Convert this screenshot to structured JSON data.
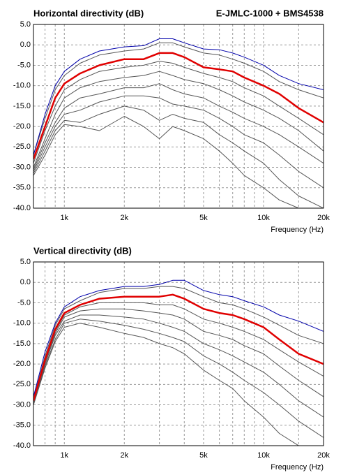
{
  "chart_data": [
    {
      "type": "line",
      "title": "Horizontal directivity (dB)",
      "annotation": "E-JMLC-1000 + BMS4538",
      "x_label": "Frequency (Hz)",
      "xscale": "log",
      "grid": true,
      "xlim": [
        700,
        20000
      ],
      "ylim": [
        -40,
        5
      ],
      "xticks": [
        {
          "value": 1000,
          "label": "1k"
        },
        {
          "value": 2000,
          "label": "2k"
        },
        {
          "value": 5000,
          "label": "5k"
        },
        {
          "value": 10000,
          "label": "10k"
        },
        {
          "value": 20000,
          "label": "20k"
        }
      ],
      "xminor": [
        800,
        900,
        3000,
        4000,
        6000,
        7000,
        8000,
        9000,
        15000
      ],
      "yticks": [
        {
          "value": 5,
          "label": "5.0"
        },
        {
          "value": 0,
          "label": "0.0"
        },
        {
          "value": -5,
          "label": "-5.0"
        },
        {
          "value": -10,
          "label": "-10.0"
        },
        {
          "value": -15,
          "label": "-15.0"
        },
        {
          "value": -20,
          "label": "-20.0"
        },
        {
          "value": -25,
          "label": "-25.0"
        },
        {
          "value": -30,
          "label": "-30.0"
        },
        {
          "value": -35,
          "label": "-35.0"
        },
        {
          "value": -40,
          "label": "-40.0"
        }
      ],
      "x": [
        700,
        800,
        900,
        1000,
        1200,
        1500,
        2000,
        2500,
        3000,
        3500,
        4000,
        5000,
        6000,
        7000,
        8000,
        10000,
        12000,
        15000,
        20000
      ],
      "series": [
        {
          "color": "#555555",
          "values": [
            -27,
            -18,
            -11,
            -7.5,
            -4.5,
            -2.5,
            -1.5,
            -1,
            0.5,
            0.5,
            -0.5,
            -2,
            -2.5,
            -3.5,
            -4.5,
            -6.5,
            -9,
            -11,
            -13
          ]
        },
        {
          "color": "#555555",
          "values": [
            -29,
            -21,
            -15,
            -11,
            -8.5,
            -6.5,
            -5.5,
            -5,
            -4,
            -4.5,
            -5.5,
            -7,
            -8,
            -9,
            -10.5,
            -12.5,
            -15,
            -18,
            -22
          ]
        },
        {
          "color": "#555555",
          "values": [
            -30,
            -23,
            -17,
            -13,
            -10.5,
            -9,
            -8,
            -7.5,
            -6.5,
            -7.5,
            -8.5,
            -9.5,
            -11,
            -12.5,
            -14,
            -16,
            -18,
            -21,
            -26
          ]
        },
        {
          "color": "#555555",
          "values": [
            -30.5,
            -24,
            -19,
            -15.5,
            -13,
            -12,
            -10.5,
            -10.5,
            -9.5,
            -11,
            -12,
            -13,
            -15,
            -16.5,
            -18,
            -20,
            -22,
            -25,
            -29
          ]
        },
        {
          "color": "#555555",
          "values": [
            -31,
            -25,
            -20,
            -17,
            -16,
            -14,
            -12.5,
            -12.5,
            -13,
            -14.5,
            -15,
            -16,
            -18,
            -20,
            -22,
            -24,
            -27,
            -31,
            -35
          ]
        },
        {
          "color": "#555555",
          "values": [
            -31.5,
            -26,
            -21,
            -18.5,
            -19,
            -17,
            -15,
            -16,
            -18.5,
            -17,
            -18,
            -19,
            -22,
            -24,
            -26,
            -29,
            -33,
            -37,
            -40
          ]
        },
        {
          "color": "#555555",
          "values": [
            -32,
            -27,
            -22,
            -19.5,
            -20,
            -21,
            -17.5,
            -20,
            -23,
            -20,
            -21,
            -23,
            -26,
            -29,
            -32,
            -35,
            -38,
            -40,
            -40
          ]
        },
        {
          "color": "#0000aa",
          "values": [
            -27,
            -17,
            -10,
            -6.5,
            -3.5,
            -1.5,
            -0.5,
            -0.2,
            1.5,
            1.5,
            0.5,
            -1,
            -1.2,
            -2,
            -3,
            -5,
            -7.5,
            -9.5,
            -11
          ]
        },
        {
          "color": "#e00000",
          "values": [
            -28,
            -20,
            -13,
            -9.5,
            -7,
            -5,
            -3.5,
            -3.5,
            -2,
            -2,
            -3,
            -5.5,
            -6,
            -6.5,
            -8,
            -10,
            -12,
            -15.5,
            -19
          ]
        }
      ]
    },
    {
      "type": "line",
      "title": "Vertical directivity (dB)",
      "x_label": "Frequency (Hz)",
      "xscale": "log",
      "grid": true,
      "xlim": [
        700,
        20000
      ],
      "ylim": [
        -40,
        5
      ],
      "xticks": [
        {
          "value": 1000,
          "label": "1k"
        },
        {
          "value": 2000,
          "label": "2k"
        },
        {
          "value": 5000,
          "label": "5k"
        },
        {
          "value": 10000,
          "label": "10k"
        },
        {
          "value": 20000,
          "label": "20k"
        }
      ],
      "xminor": [
        800,
        900,
        3000,
        4000,
        6000,
        7000,
        8000,
        9000,
        15000
      ],
      "yticks": [
        {
          "value": 5,
          "label": "5.0"
        },
        {
          "value": 0,
          "label": "0.0"
        },
        {
          "value": -5,
          "label": "-5.0"
        },
        {
          "value": -10,
          "label": "-10.0"
        },
        {
          "value": -15,
          "label": "-15.0"
        },
        {
          "value": -20,
          "label": "-20.0"
        },
        {
          "value": -25,
          "label": "-25.0"
        },
        {
          "value": -30,
          "label": "-30.0"
        },
        {
          "value": -35,
          "label": "-35.0"
        },
        {
          "value": -40,
          "label": "-40.0"
        }
      ],
      "x": [
        700,
        800,
        900,
        1000,
        1200,
        1500,
        2000,
        2500,
        3000,
        3500,
        4000,
        5000,
        6000,
        7000,
        8000,
        10000,
        12000,
        15000,
        20000
      ],
      "series": [
        {
          "color": "#555555",
          "values": [
            -28.5,
            -18,
            -10.5,
            -6.5,
            -4.5,
            -2.5,
            -1.5,
            -1.5,
            -1,
            -1,
            -1.5,
            -3.5,
            -5,
            -5.5,
            -6.5,
            -8.5,
            -10.5,
            -13,
            -15
          ]
        },
        {
          "color": "#555555",
          "values": [
            -29,
            -19,
            -12,
            -8,
            -6,
            -5,
            -5,
            -5,
            -5.5,
            -5.5,
            -6.5,
            -9,
            -10,
            -11,
            -12,
            -14,
            -16.5,
            -19.5,
            -23
          ]
        },
        {
          "color": "#555555",
          "values": [
            -29.5,
            -19.5,
            -12.5,
            -8.5,
            -7,
            -6.5,
            -6.5,
            -7,
            -7.5,
            -8,
            -9,
            -12,
            -13,
            -14,
            -15.5,
            -17.5,
            -20.5,
            -24,
            -28
          ]
        },
        {
          "color": "#555555",
          "values": [
            -29.5,
            -20,
            -13,
            -9.5,
            -8,
            -8,
            -8.5,
            -9,
            -10,
            -11,
            -12,
            -15,
            -16.5,
            -18,
            -19.5,
            -22,
            -25,
            -29,
            -33
          ]
        },
        {
          "color": "#555555",
          "values": [
            -30,
            -20.5,
            -14,
            -10,
            -9,
            -9.5,
            -10.5,
            -11.5,
            -12.5,
            -13.5,
            -14.5,
            -18,
            -20,
            -22,
            -24,
            -27,
            -30,
            -34,
            -38
          ]
        },
        {
          "color": "#555555",
          "values": [
            -30,
            -21,
            -14.5,
            -11,
            -10,
            -11,
            -12.5,
            -13.5,
            -15,
            -16,
            -17.5,
            -21.5,
            -24,
            -26,
            -29,
            -33,
            -37,
            -40,
            -40
          ]
        },
        {
          "color": "#0000aa",
          "values": [
            -28,
            -17,
            -10,
            -6,
            -3.5,
            -2,
            -1,
            -1,
            -0.5,
            0.5,
            0.5,
            -2,
            -3,
            -3.5,
            -4.5,
            -6,
            -8,
            -9.5,
            -12
          ]
        },
        {
          "color": "#e00000",
          "values": [
            -29,
            -19,
            -11.5,
            -7.5,
            -5.5,
            -4,
            -3.5,
            -3.5,
            -3.5,
            -3,
            -4,
            -6.5,
            -7.5,
            -8,
            -9,
            -11,
            -14,
            -17.5,
            -20
          ]
        }
      ]
    }
  ]
}
